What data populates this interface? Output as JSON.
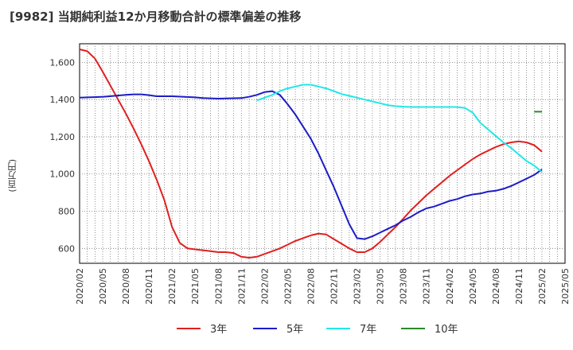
{
  "chart_data": {
    "type": "line",
    "title": "[9982]  当期純利益12か月移動合計の標準偏差の推移",
    "ylabel": "(百万円)",
    "xlabel": "",
    "ylim": [
      520,
      1700
    ],
    "yticks": [
      600,
      800,
      1000,
      1200,
      1400,
      1600
    ],
    "ytick_labels": [
      "600",
      "800",
      "1,000",
      "1,200",
      "1,400",
      "1,600"
    ],
    "xticks": [
      "2020/02",
      "2020/05",
      "2020/08",
      "2020/11",
      "2021/02",
      "2021/05",
      "2021/08",
      "2021/11",
      "2022/02",
      "2022/05",
      "2022/08",
      "2022/11",
      "2023/02",
      "2023/05",
      "2023/08",
      "2023/11",
      "2024/02",
      "2024/05",
      "2024/08",
      "2024/11",
      "2025/02",
      "2025/05"
    ],
    "grid": true,
    "legend_position": "bottom",
    "series": [
      {
        "name": "3年",
        "color": "#e02020",
        "x": [
          "2020/02",
          "2020/03",
          "2020/04",
          "2020/05",
          "2020/06",
          "2020/07",
          "2020/08",
          "2020/09",
          "2020/10",
          "2020/11",
          "2020/12",
          "2021/01",
          "2021/02",
          "2021/03",
          "2021/04",
          "2021/05",
          "2021/06",
          "2021/07",
          "2021/08",
          "2021/09",
          "2021/10",
          "2021/11",
          "2021/12",
          "2022/01",
          "2022/02",
          "2022/03",
          "2022/04",
          "2022/05",
          "2022/06",
          "2022/07",
          "2022/08",
          "2022/09",
          "2022/10",
          "2022/11",
          "2022/12",
          "2023/01",
          "2023/02",
          "2023/03",
          "2023/04",
          "2023/05",
          "2023/06",
          "2023/07",
          "2023/08",
          "2023/09",
          "2023/10",
          "2023/11",
          "2023/12",
          "2024/01",
          "2024/02",
          "2024/03",
          "2024/04",
          "2024/05",
          "2024/06",
          "2024/07",
          "2024/08",
          "2024/09",
          "2024/10",
          "2024/11",
          "2024/12",
          "2025/01",
          "2025/02"
        ],
        "values": [
          1670,
          1660,
          1620,
          1550,
          1475,
          1400,
          1325,
          1245,
          1160,
          1070,
          970,
          860,
          715,
          630,
          600,
          595,
          590,
          585,
          580,
          580,
          575,
          555,
          550,
          555,
          570,
          585,
          600,
          620,
          640,
          655,
          670,
          680,
          675,
          650,
          625,
          600,
          580,
          580,
          600,
          635,
          675,
          715,
          760,
          805,
          845,
          885,
          920,
          955,
          990,
          1020,
          1050,
          1080,
          1105,
          1125,
          1145,
          1160,
          1170,
          1175,
          1170,
          1155,
          1120
        ]
      },
      {
        "name": "5年",
        "color": "#1c1cc8",
        "x": [
          "2020/02",
          "2020/05",
          "2020/08",
          "2020/09",
          "2020/10",
          "2020/11",
          "2020/12",
          "2021/02",
          "2021/05",
          "2021/06",
          "2021/08",
          "2021/11",
          "2021/12",
          "2022/01",
          "2022/02",
          "2022/03",
          "2022/04",
          "2022/05",
          "2022/06",
          "2022/07",
          "2022/08",
          "2022/09",
          "2022/10",
          "2022/11",
          "2022/12",
          "2023/01",
          "2023/02",
          "2023/03",
          "2023/04",
          "2023/05",
          "2023/06",
          "2023/07",
          "2023/08",
          "2023/09",
          "2023/10",
          "2023/11",
          "2023/12",
          "2024/01",
          "2024/02",
          "2024/03",
          "2024/04",
          "2024/05",
          "2024/06",
          "2024/07",
          "2024/08",
          "2024/09",
          "2024/10",
          "2024/11",
          "2024/12",
          "2025/01",
          "2025/02"
        ],
        "values": [
          1410,
          1415,
          1425,
          1428,
          1428,
          1424,
          1418,
          1418,
          1412,
          1408,
          1405,
          1408,
          1415,
          1425,
          1440,
          1445,
          1425,
          1375,
          1320,
          1255,
          1190,
          1110,
          1020,
          930,
          830,
          730,
          655,
          650,
          665,
          685,
          705,
          725,
          750,
          770,
          795,
          815,
          825,
          840,
          855,
          865,
          880,
          890,
          895,
          905,
          910,
          920,
          935,
          955,
          975,
          995,
          1025
        ]
      },
      {
        "name": "7年",
        "color": "#20e8e8",
        "x": [
          "2022/01",
          "2022/02",
          "2022/03",
          "2022/04",
          "2022/05",
          "2022/06",
          "2022/07",
          "2022/08",
          "2022/09",
          "2022/10",
          "2022/11",
          "2022/12",
          "2023/01",
          "2023/02",
          "2023/03",
          "2023/04",
          "2023/05",
          "2023/06",
          "2023/07",
          "2023/08",
          "2023/09",
          "2023/10",
          "2023/11",
          "2023/12",
          "2024/01",
          "2024/02",
          "2024/03",
          "2024/04",
          "2024/05",
          "2024/06",
          "2024/07",
          "2024/08",
          "2024/09",
          "2024/10",
          "2024/11",
          "2024/12",
          "2025/01",
          "2025/02"
        ],
        "values": [
          1395,
          1410,
          1425,
          1445,
          1460,
          1470,
          1480,
          1480,
          1470,
          1460,
          1445,
          1430,
          1420,
          1410,
          1400,
          1390,
          1380,
          1370,
          1365,
          1362,
          1360,
          1360,
          1360,
          1360,
          1360,
          1360,
          1360,
          1355,
          1330,
          1275,
          1240,
          1205,
          1170,
          1140,
          1105,
          1070,
          1045,
          1010
        ]
      },
      {
        "name": "10年",
        "color": "#2a8a2a",
        "x": [
          "2025/01",
          "2025/02"
        ],
        "values": [
          1335,
          1335
        ]
      }
    ]
  }
}
